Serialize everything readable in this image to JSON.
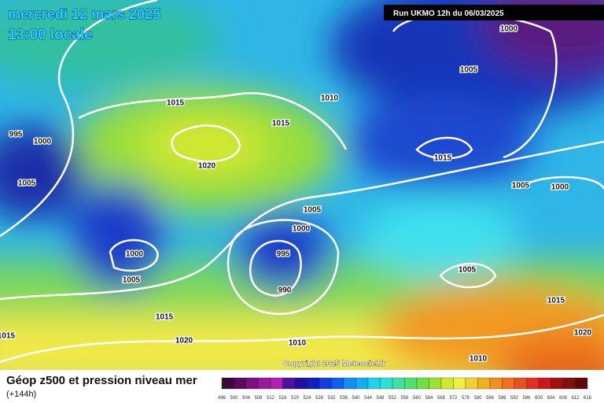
{
  "header": {
    "date": "mercredi 12 mars 2025",
    "time": "13:00 locale",
    "run": "Run UKMO 12h du 06/03/2025"
  },
  "isobars": [
    1000,
    1005,
    1010,
    1015,
    1015,
    995,
    1000,
    1020,
    1015,
    1005,
    1005,
    1000,
    1005,
    1000,
    1000,
    995,
    1005,
    1005,
    990,
    1015,
    1015,
    1015,
    1020,
    1020,
    1010,
    1010
  ],
  "copyright": "Copyright 2025 Meteociel.fr",
  "legend": {
    "title": "Géop z500 et pression niveau mer",
    "subtitle": "(+144h)",
    "scale": [
      496,
      500,
      504,
      508,
      512,
      516,
      520,
      524,
      528,
      532,
      536,
      540,
      544,
      548,
      552,
      556,
      560,
      564,
      568,
      572,
      576,
      580,
      584,
      588,
      592,
      596,
      600,
      604,
      608,
      612,
      616
    ]
  }
}
